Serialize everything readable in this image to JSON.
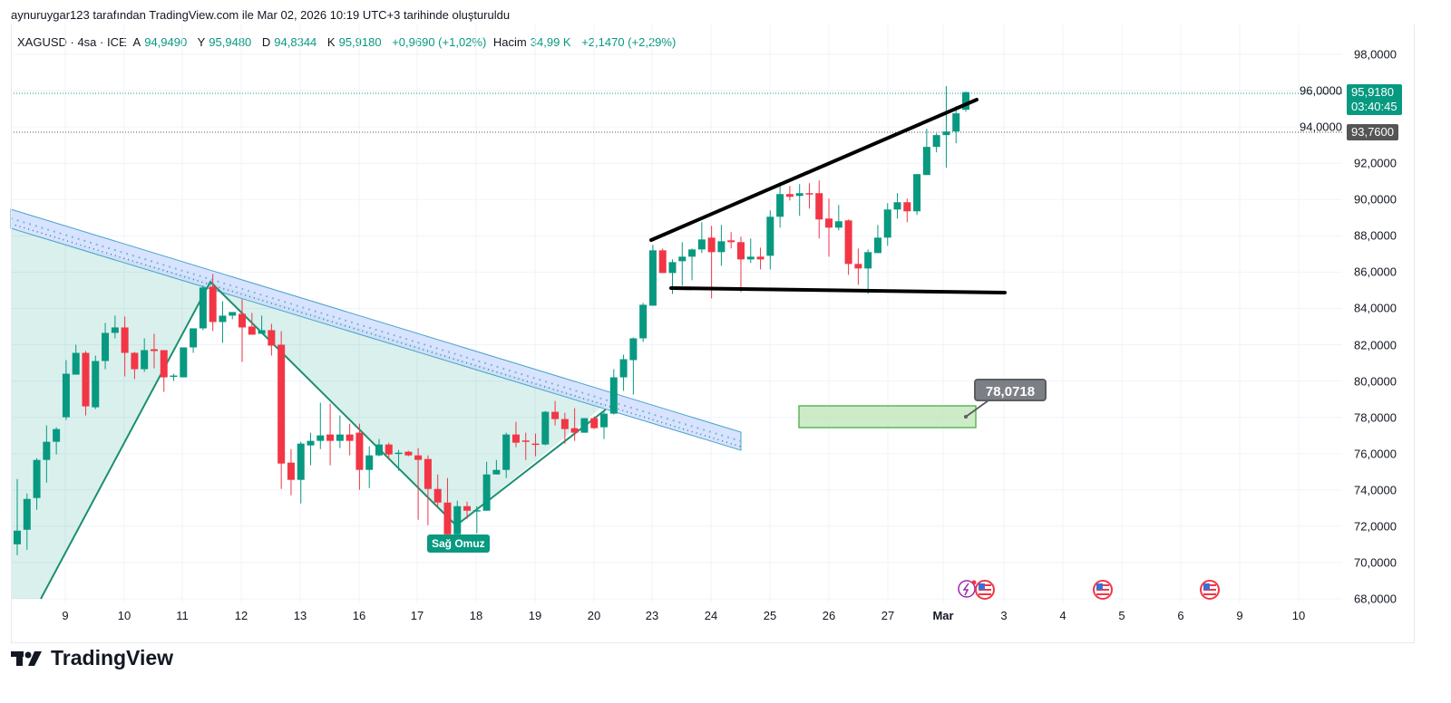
{
  "credit": "aynuruygar123 tarafından TradingView.com ile Mar 02, 2026 10:19 UTC+3 tarihinde oluşturuldu",
  "legend": {
    "symbol": "XAGUSD · 4sa · ICE",
    "open_label": "A",
    "open": "94,9490",
    "high_label": "Y",
    "high": "95,9480",
    "low_label": "D",
    "low": "94,8344",
    "close_label": "K",
    "close": "95,9180",
    "change": "+0,9690 (+1,02%)",
    "volume_label": "Hacim",
    "volume": "34,99 K",
    "volume_change": "+2,1470 (+2,29%)"
  },
  "price_tags": {
    "last_price": "95,9180",
    "countdown": "03:40:45",
    "line_price": "93,7600"
  },
  "annotations": {
    "callout": "78,0718",
    "pattern_label": "Sağ Omuz"
  },
  "brand": "TradingView",
  "colors": {
    "up": "#089981",
    "down": "#f23645",
    "channel": "#5bb3d6",
    "wedge": "#000000"
  },
  "events": [
    "lightning-icon",
    "us-flag-icon",
    "us-flag-icon",
    "us-flag-icon"
  ],
  "chart_data": {
    "type": "candlestick",
    "symbol": "XAGUSD",
    "interval": "4h",
    "ylim": [
      68,
      98
    ],
    "y_ticks": [
      "98,0000",
      "96,0000",
      "94,0000",
      "92,0000",
      "90,0000",
      "88,0000",
      "86,0000",
      "84,0000",
      "82,0000",
      "80,0000",
      "78,0000",
      "76,0000",
      "74,0000",
      "72,0000",
      "70,0000",
      "68,0000"
    ],
    "x_ticks": [
      "9",
      "10",
      "11",
      "12",
      "13",
      "16",
      "17",
      "18",
      "19",
      "20",
      "23",
      "24",
      "25",
      "26",
      "27",
      "Mar",
      "3",
      "4",
      "5",
      "6",
      "9",
      "10"
    ],
    "ohlc": [
      [
        71.0,
        74.6,
        70.4,
        71.75
      ],
      [
        71.8,
        73.8,
        70.7,
        73.5
      ],
      [
        73.55,
        75.75,
        72.9,
        75.65
      ],
      [
        75.65,
        77.55,
        74.4,
        76.65
      ],
      [
        76.65,
        77.45,
        75.95,
        77.35
      ],
      [
        78.0,
        81.15,
        77.85,
        80.4
      ],
      [
        80.35,
        82.0,
        80.35,
        81.55
      ],
      [
        81.55,
        81.65,
        78.1,
        78.6
      ],
      [
        78.55,
        81.4,
        78.45,
        81.1
      ],
      [
        81.1,
        83.2,
        80.65,
        82.65
      ],
      [
        82.65,
        83.6,
        82.35,
        82.95
      ],
      [
        82.95,
        83.55,
        80.25,
        81.55
      ],
      [
        81.55,
        81.6,
        80.1,
        80.65
      ],
      [
        80.65,
        82.35,
        80.5,
        81.7
      ],
      [
        81.75,
        82.6,
        80.7,
        81.65
      ],
      [
        81.7,
        81.7,
        79.4,
        80.2
      ],
      [
        80.25,
        80.4,
        80.0,
        80.3
      ],
      [
        80.2,
        81.85,
        80.2,
        81.85
      ],
      [
        81.85,
        82.9,
        81.55,
        82.9
      ],
      [
        82.9,
        85.25,
        82.8,
        85.15
      ],
      [
        85.2,
        85.9,
        82.75,
        83.25
      ],
      [
        83.25,
        84.4,
        82.1,
        83.6
      ],
      [
        83.6,
        83.8,
        83.4,
        83.8
      ],
      [
        83.7,
        84.5,
        81.05,
        82.95
      ],
      [
        83.0,
        83.75,
        82.55,
        82.55
      ],
      [
        82.6,
        83.6,
        82.6,
        82.8
      ],
      [
        82.8,
        83.15,
        81.4,
        81.95
      ],
      [
        82.0,
        82.75,
        74.05,
        75.45
      ],
      [
        75.5,
        76.25,
        73.7,
        74.55
      ],
      [
        74.55,
        76.65,
        73.25,
        76.55
      ],
      [
        76.45,
        77.15,
        75.35,
        76.7
      ],
      [
        76.7,
        78.8,
        76.25,
        77.0
      ],
      [
        77.05,
        78.75,
        75.35,
        76.7
      ],
      [
        76.7,
        78.1,
        76.3,
        77.05
      ],
      [
        77.05,
        77.65,
        75.9,
        76.7
      ],
      [
        77.15,
        77.65,
        74.0,
        75.1
      ],
      [
        75.1,
        76.4,
        74.1,
        75.9
      ],
      [
        75.9,
        76.8,
        75.85,
        76.5
      ],
      [
        76.5,
        76.6,
        75.7,
        75.95
      ],
      [
        75.98,
        76.2,
        75.05,
        76.05
      ],
      [
        76.1,
        76.15,
        75.85,
        75.9
      ],
      [
        75.9,
        76.3,
        72.35,
        75.65
      ],
      [
        75.7,
        75.9,
        72.05,
        74.05
      ],
      [
        74.05,
        74.85,
        73.0,
        73.3
      ],
      [
        73.3,
        74.65,
        71.4,
        71.55
      ],
      [
        71.55,
        73.4,
        71.35,
        73.1
      ],
      [
        73.1,
        73.35,
        72.4,
        72.85
      ],
      [
        72.83,
        73.1,
        71.6,
        72.88
      ],
      [
        72.85,
        75.55,
        72.85,
        74.85
      ],
      [
        74.85,
        75.65,
        74.85,
        75.1
      ],
      [
        75.1,
        77.15,
        74.65,
        77.05
      ],
      [
        77.05,
        77.75,
        76.35,
        76.6
      ],
      [
        76.72,
        77.15,
        75.65,
        76.68
      ],
      [
        76.55,
        77.1,
        75.85,
        76.5
      ],
      [
        76.5,
        78.35,
        76.45,
        78.3
      ],
      [
        78.3,
        78.9,
        77.55,
        77.9
      ],
      [
        77.9,
        78.25,
        76.55,
        77.35
      ],
      [
        77.4,
        78.5,
        76.7,
        77.15
      ],
      [
        77.15,
        77.95,
        77.15,
        77.95
      ],
      [
        77.95,
        78.05,
        77.35,
        77.4
      ],
      [
        77.45,
        78.4,
        76.8,
        78.2
      ],
      [
        78.2,
        80.65,
        78.15,
        80.2
      ],
      [
        80.2,
        81.45,
        79.45,
        81.2
      ],
      [
        81.15,
        82.4,
        79.25,
        82.35
      ],
      [
        82.35,
        84.3,
        82.15,
        84.2
      ],
      [
        84.15,
        87.5,
        84.15,
        87.2
      ],
      [
        87.2,
        87.3,
        85.95,
        85.95
      ],
      [
        85.95,
        86.7,
        84.8,
        86.55
      ],
      [
        86.6,
        87.65,
        85.25,
        86.85
      ],
      [
        86.85,
        87.3,
        85.55,
        87.25
      ],
      [
        87.25,
        88.75,
        87.05,
        87.8
      ],
      [
        87.9,
        88.55,
        84.55,
        87.1
      ],
      [
        87.1,
        88.6,
        86.35,
        87.7
      ],
      [
        87.75,
        88.2,
        87.3,
        87.65
      ],
      [
        87.65,
        87.95,
        84.9,
        86.7
      ],
      [
        86.7,
        87.85,
        86.5,
        86.85
      ],
      [
        86.85,
        87.35,
        86.15,
        86.7
      ],
      [
        86.9,
        89.4,
        86.15,
        89.05
      ],
      [
        89.05,
        90.95,
        88.45,
        90.3
      ],
      [
        90.3,
        90.75,
        89.95,
        90.15
      ],
      [
        90.2,
        90.85,
        89.1,
        90.35
      ],
      [
        90.35,
        90.9,
        89.5,
        90.3
      ],
      [
        90.35,
        91.05,
        87.85,
        88.9
      ],
      [
        88.95,
        90.05,
        86.85,
        88.45
      ],
      [
        88.45,
        89.7,
        88.3,
        88.8
      ],
      [
        88.85,
        88.9,
        85.85,
        86.45
      ],
      [
        86.45,
        87.3,
        85.3,
        86.2
      ],
      [
        86.2,
        87.25,
        84.8,
        87.1
      ],
      [
        87.05,
        88.6,
        87.05,
        87.9
      ],
      [
        87.9,
        89.8,
        87.45,
        89.45
      ],
      [
        89.45,
        90.35,
        88.95,
        89.85
      ],
      [
        89.85,
        90.05,
        88.75,
        89.35
      ],
      [
        89.35,
        91.4,
        89.15,
        91.4
      ],
      [
        91.35,
        93.9,
        91.35,
        92.9
      ],
      [
        92.9,
        93.65,
        92.6,
        93.55
      ],
      [
        93.55,
        96.25,
        91.75,
        93.75
      ],
      [
        93.75,
        95.15,
        93.1,
        94.75
      ],
      [
        94.949,
        95.948,
        94.8344,
        95.918
      ]
    ],
    "horizontal_lines": [
      95.918,
      93.76
    ],
    "callout_value": 78.0718
  }
}
